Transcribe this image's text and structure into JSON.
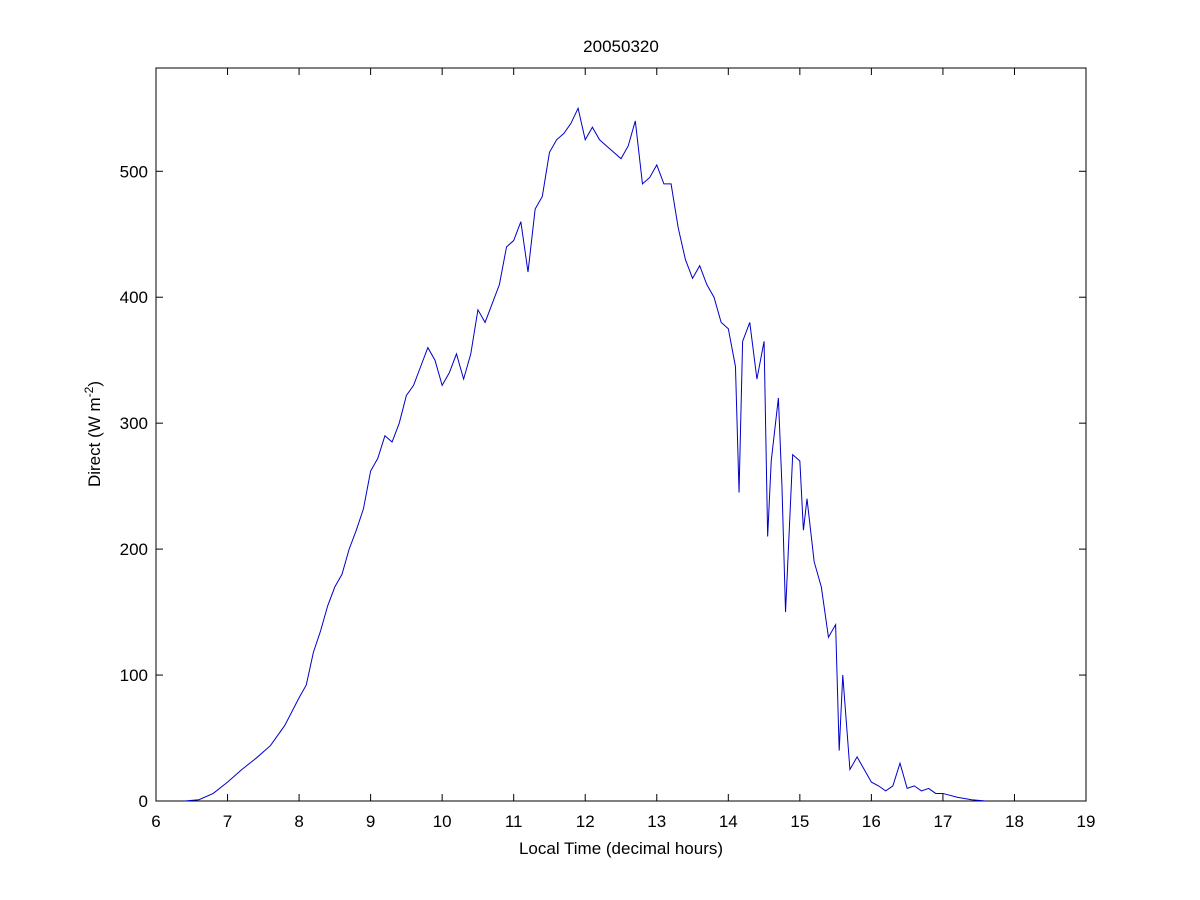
{
  "chart_data": {
    "type": "line",
    "title": "20050320",
    "xlabel": "Local Time (decimal hours)",
    "ylabel": {
      "text": "Direct (W m",
      "sup": "-2",
      "tail": ")"
    },
    "xlim": [
      6,
      19
    ],
    "ylim": [
      0,
      582
    ],
    "xticks": [
      6,
      7,
      8,
      9,
      10,
      11,
      12,
      13,
      14,
      15,
      16,
      17,
      18,
      19
    ],
    "yticks": [
      0,
      100,
      200,
      300,
      400,
      500
    ],
    "series": [
      {
        "color": "#0000c8",
        "x": [
          6.4,
          6.6,
          6.8,
          7.0,
          7.2,
          7.4,
          7.6,
          7.8,
          8.0,
          8.1,
          8.2,
          8.3,
          8.4,
          8.5,
          8.6,
          8.7,
          8.8,
          8.9,
          9.0,
          9.1,
          9.2,
          9.3,
          9.4,
          9.5,
          9.6,
          9.7,
          9.8,
          9.9,
          10.0,
          10.1,
          10.2,
          10.3,
          10.4,
          10.5,
          10.6,
          10.7,
          10.8,
          10.9,
          11.0,
          11.1,
          11.2,
          11.3,
          11.4,
          11.5,
          11.6,
          11.7,
          11.8,
          11.9,
          12.0,
          12.1,
          12.2,
          12.3,
          12.4,
          12.5,
          12.6,
          12.7,
          12.8,
          12.9,
          13.0,
          13.1,
          13.2,
          13.3,
          13.4,
          13.5,
          13.6,
          13.7,
          13.8,
          13.9,
          14.0,
          14.1,
          14.15,
          14.2,
          14.3,
          14.4,
          14.5,
          14.55,
          14.6,
          14.7,
          14.75,
          14.8,
          14.9,
          15.0,
          15.05,
          15.1,
          15.2,
          15.3,
          15.4,
          15.5,
          15.55,
          15.6,
          15.7,
          15.8,
          15.9,
          16.0,
          16.1,
          16.2,
          16.3,
          16.4,
          16.5,
          16.6,
          16.7,
          16.8,
          16.9,
          17.0,
          17.2,
          17.4,
          17.6
        ],
        "values": [
          0,
          1,
          6,
          15,
          25,
          34,
          44,
          60,
          82,
          92,
          118,
          135,
          155,
          170,
          180,
          200,
          215,
          232,
          262,
          272,
          290,
          285,
          300,
          322,
          330,
          345,
          360,
          350,
          330,
          340,
          355,
          335,
          355,
          390,
          380,
          395,
          410,
          440,
          445,
          460,
          420,
          470,
          480,
          515,
          525,
          530,
          538,
          550,
          525,
          535,
          525,
          520,
          515,
          510,
          520,
          540,
          490,
          495,
          505,
          490,
          490,
          455,
          430,
          415,
          425,
          410,
          400,
          380,
          375,
          345,
          245,
          365,
          380,
          335,
          365,
          210,
          270,
          320,
          250,
          150,
          275,
          270,
          215,
          240,
          190,
          170,
          130,
          140,
          40,
          100,
          25,
          35,
          25,
          15,
          12,
          8,
          12,
          30,
          10,
          12,
          8,
          10,
          6,
          6,
          3,
          1,
          0
        ]
      }
    ]
  }
}
